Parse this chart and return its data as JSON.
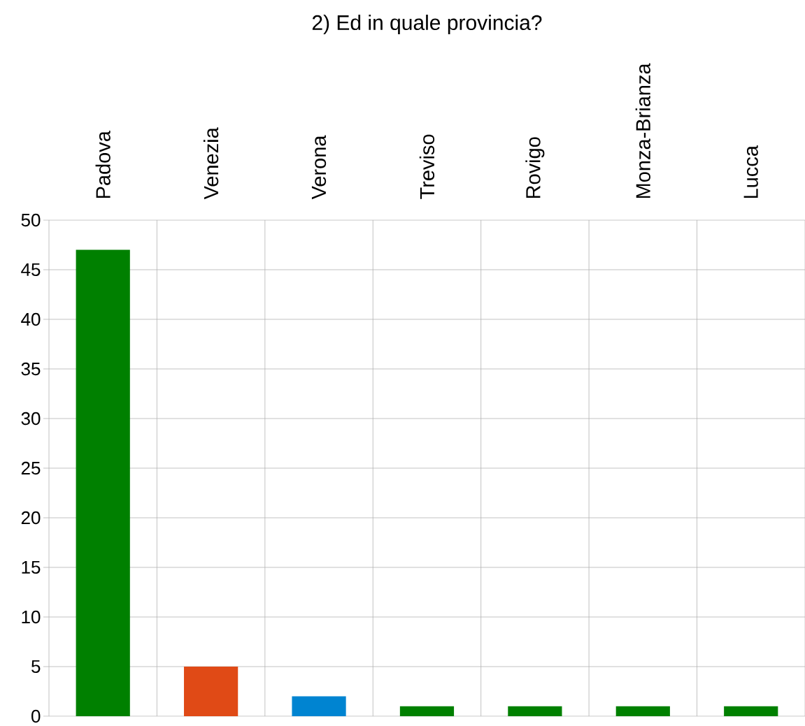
{
  "chart_data": {
    "type": "bar",
    "title": "2) Ed in quale provincia?",
    "categories": [
      "Padova",
      "Venezia",
      "Verona",
      "Treviso",
      "Rovigo",
      "Monza-Brianza",
      "Lucca"
    ],
    "values": [
      47,
      5,
      2,
      1,
      1,
      1,
      1
    ],
    "colors": [
      "#008000",
      "#e04a16",
      "#0084d1",
      "#008000",
      "#008000",
      "#008000",
      "#008000"
    ],
    "ylim": [
      0,
      50
    ],
    "yticks": [
      0,
      5,
      10,
      15,
      20,
      25,
      30,
      35,
      40,
      45,
      50
    ],
    "grid": true
  }
}
